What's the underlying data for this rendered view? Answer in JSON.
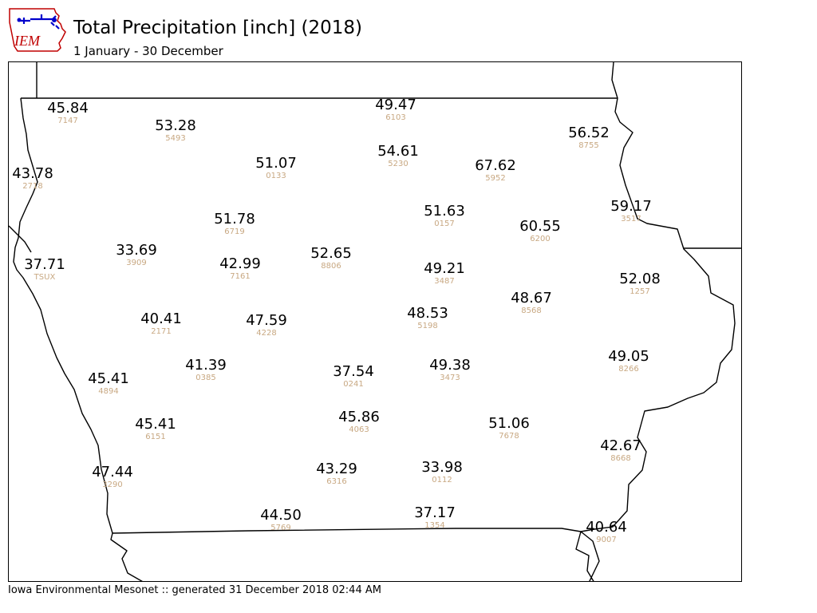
{
  "header": {
    "title": "Total Precipitation [inch] (2018)",
    "subtitle": "1 January - 30 December"
  },
  "logo": {
    "text": "IEM",
    "icon": "iowa-state-outline-logo",
    "colors": {
      "text": "#c00000",
      "outline": "#c00000",
      "mark": "#0000cc"
    }
  },
  "footer": {
    "text": "Iowa Environmental Mesonet :: generated 31 December 2018 02:44 AM"
  },
  "colors": {
    "value_text": "#000000",
    "station_id_text": "#c8a882",
    "boundary": "#000000"
  },
  "stations": [
    {
      "value": "45.84",
      "id": "7147"
    },
    {
      "value": "49.47",
      "id": "6103"
    },
    {
      "value": "53.28",
      "id": "5493"
    },
    {
      "value": "56.52",
      "id": "8755"
    },
    {
      "value": "54.61",
      "id": "5230"
    },
    {
      "value": "43.78",
      "id": "2718"
    },
    {
      "value": "51.07",
      "id": "0133"
    },
    {
      "value": "67.62",
      "id": "5952"
    },
    {
      "value": "59.17",
      "id": "3517"
    },
    {
      "value": "51.78",
      "id": "6719"
    },
    {
      "value": "51.63",
      "id": "0157"
    },
    {
      "value": "60.55",
      "id": "6200"
    },
    {
      "value": "33.69",
      "id": "3909"
    },
    {
      "value": "37.71",
      "id": "TSUX"
    },
    {
      "value": "42.99",
      "id": "7161"
    },
    {
      "value": "52.65",
      "id": "8806"
    },
    {
      "value": "49.21",
      "id": "3487"
    },
    {
      "value": "52.08",
      "id": "1257"
    },
    {
      "value": "48.67",
      "id": "8568"
    },
    {
      "value": "40.41",
      "id": "2171"
    },
    {
      "value": "47.59",
      "id": "4228"
    },
    {
      "value": "48.53",
      "id": "5198"
    },
    {
      "value": "49.05",
      "id": "8266"
    },
    {
      "value": "41.39",
      "id": "0385"
    },
    {
      "value": "37.54",
      "id": "0241"
    },
    {
      "value": "49.38",
      "id": "3473"
    },
    {
      "value": "45.41",
      "id": "4894"
    },
    {
      "value": "45.86",
      "id": "4063"
    },
    {
      "value": "45.41",
      "id": "6151"
    },
    {
      "value": "51.06",
      "id": "7678"
    },
    {
      "value": "42.67",
      "id": "8668"
    },
    {
      "value": "47.44",
      "id": "3290"
    },
    {
      "value": "43.29",
      "id": "6316"
    },
    {
      "value": "33.98",
      "id": "0112"
    },
    {
      "value": "44.50",
      "id": "5769"
    },
    {
      "value": "37.17",
      "id": "1354"
    },
    {
      "value": "40.64",
      "id": "9007"
    }
  ]
}
